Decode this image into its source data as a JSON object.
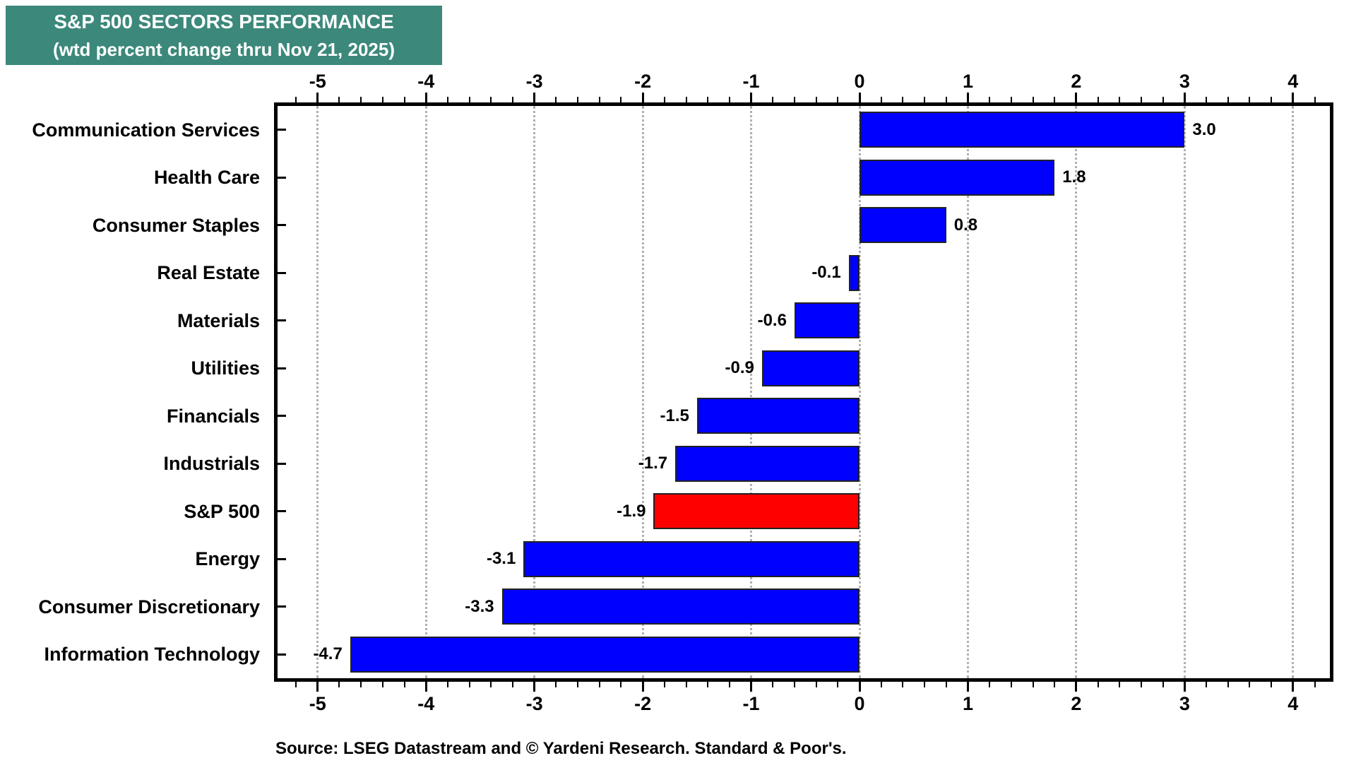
{
  "header": {
    "title_line1": "S&P 500 SECTORS PERFORMANCE",
    "title_line2": "(wtd percent change thru Nov 21, 2025)",
    "bg_color": "#3c887b",
    "text_color": "#ffffff"
  },
  "footer": {
    "source_text": "Source: LSEG Datastream and © Yardeni Research. Standard & Poor's."
  },
  "chart_data": {
    "type": "bar",
    "orientation": "horizontal",
    "title": "S&P 500 SECTORS PERFORMANCE",
    "subtitle": "(wtd percent change thru Nov 21, 2025)",
    "categories": [
      "Communication Services",
      "Health Care",
      "Consumer Staples",
      "Real Estate",
      "Materials",
      "Utilities",
      "Financials",
      "Industrials",
      "S&P 500",
      "Energy",
      "Consumer Discretionary",
      "Information Technology"
    ],
    "values": [
      3.0,
      1.8,
      0.8,
      -0.1,
      -0.6,
      -0.9,
      -1.5,
      -1.7,
      -1.9,
      -3.1,
      -3.3,
      -4.7
    ],
    "value_labels": [
      "3.0",
      "1.8",
      "0.8",
      "-0.1",
      "-0.6",
      "-0.9",
      "-1.5",
      "-1.7",
      "-1.9",
      "-3.1",
      "-3.3",
      "-4.7"
    ],
    "highlight_index": 8,
    "xlim": [
      -5.37,
      4.34
    ],
    "x_major_ticks": [
      -5,
      -4,
      -3,
      -2,
      -1,
      0,
      1,
      2,
      3,
      4
    ],
    "x_major_tick_labels": [
      "-5",
      "-4",
      "-3",
      "-2",
      "-1",
      "0",
      "1",
      "2",
      "3",
      "4"
    ],
    "x_minor_step": 0.2,
    "grid": "vertical dotted at integer ticks, on",
    "legend": "none",
    "xlabel": "",
    "ylabel": "",
    "colors": {
      "bar": "#0000fe",
      "highlight": "#fe0000",
      "bar_border": "#222222",
      "grid": "#b0b0b0",
      "axis": "#000000"
    }
  }
}
